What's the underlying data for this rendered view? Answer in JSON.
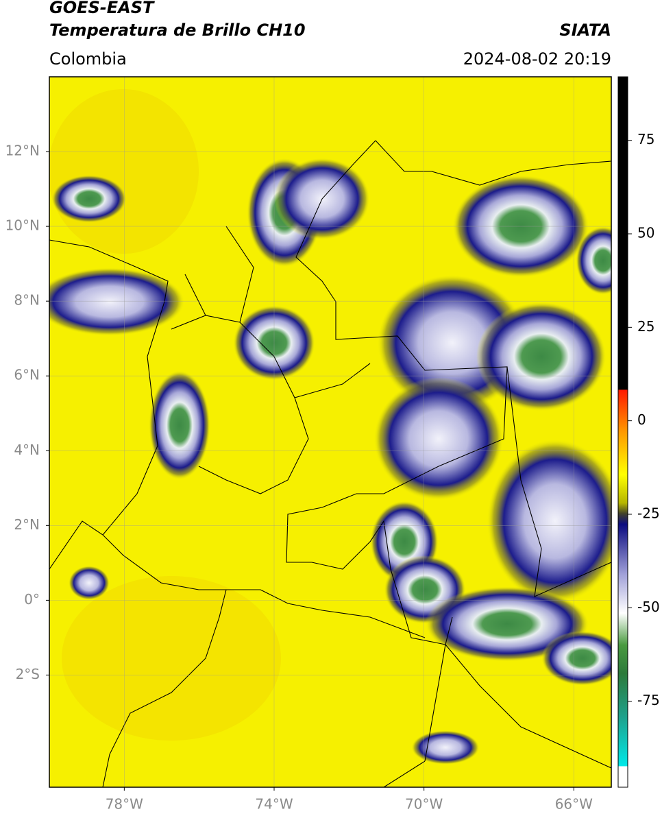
{
  "header": {
    "title": "GOES-EAST",
    "subtitle": "Temperatura de Brillo CH10",
    "source": "SIATA",
    "region": "Colombia",
    "datetime": "2024-08-02 20:19"
  },
  "map": {
    "xlim": [
      -80,
      -65
    ],
    "ylim": [
      -5,
      14
    ],
    "xticks": [
      {
        "value": -78,
        "label": "78°W"
      },
      {
        "value": -74,
        "label": "74°W"
      },
      {
        "value": -70,
        "label": "70°W"
      },
      {
        "value": -66,
        "label": "66°W"
      }
    ],
    "yticks": [
      {
        "value": 12,
        "label": "12°N"
      },
      {
        "value": 10,
        "label": "10°N"
      },
      {
        "value": 8,
        "label": "8°N"
      },
      {
        "value": 6,
        "label": "6°N"
      },
      {
        "value": 4,
        "label": "4°N"
      },
      {
        "value": 2,
        "label": "2°N"
      },
      {
        "value": 0,
        "label": "0°"
      },
      {
        "value": -2,
        "label": "2°S"
      }
    ]
  },
  "colorbar": {
    "range": [
      -98,
      92
    ],
    "ticks": [
      75,
      50,
      25,
      0,
      -25,
      -50,
      -75
    ]
  }
}
